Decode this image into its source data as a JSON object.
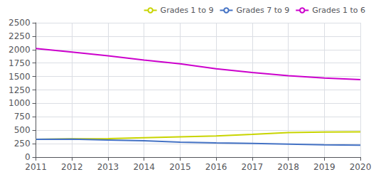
{
  "chart_data": {
    "type": "line",
    "x": [
      2011,
      2012,
      2013,
      2014,
      2015,
      2016,
      2017,
      2018,
      2019,
      2020
    ],
    "series": [
      {
        "name": "Grades 1 to 9",
        "color": "#c8d400",
        "values": [
          330,
          340,
          345,
          362,
          378,
          393,
          422,
          455,
          465,
          470
        ]
      },
      {
        "name": "Grades 7 to 9",
        "color": "#4472c4",
        "values": [
          330,
          333,
          318,
          303,
          278,
          265,
          255,
          242,
          228,
          222
        ]
      },
      {
        "name": "Grades 1 to 6",
        "color": "#cc00cc",
        "values": [
          2020,
          1955,
          1885,
          1805,
          1735,
          1645,
          1575,
          1513,
          1472,
          1443
        ]
      }
    ],
    "xlim": [
      2011,
      2020
    ],
    "xticks": [
      2011,
      2012,
      2013,
      2014,
      2015,
      2016,
      2017,
      2018,
      2019,
      2020
    ],
    "ylim": [
      0,
      2500
    ],
    "yticks": [
      0,
      250,
      500,
      750,
      1000,
      1250,
      1500,
      1750,
      2000,
      2250,
      2500
    ],
    "grid": true,
    "legend": "upper right"
  }
}
